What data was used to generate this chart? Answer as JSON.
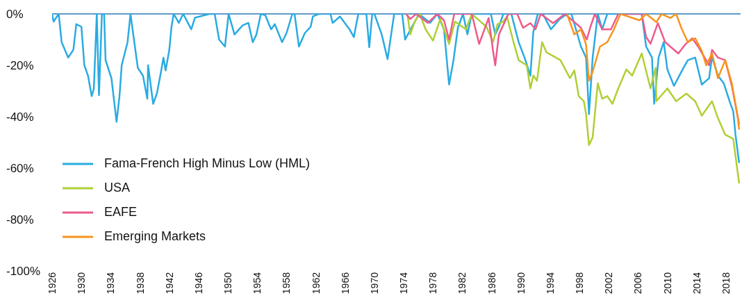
{
  "chart_data": {
    "type": "line",
    "xlim": [
      1926,
      2020
    ],
    "xticks": [
      1926,
      1930,
      1934,
      1938,
      1942,
      1946,
      1950,
      1954,
      1958,
      1962,
      1966,
      1970,
      1974,
      1978,
      1982,
      1986,
      1990,
      1994,
      1998,
      2002,
      2006,
      2010,
      2014,
      2018
    ],
    "ylim": [
      -100,
      0
    ],
    "yticks": [
      {
        "value": 0,
        "label": "0%"
      },
      {
        "value": -20,
        "label": "-20%"
      },
      {
        "value": -40,
        "label": "-40%"
      },
      {
        "value": -60,
        "label": "-60%"
      },
      {
        "value": -80,
        "label": "-80%"
      },
      {
        "value": -100,
        "label": "-100%"
      }
    ],
    "grid": false,
    "legend": "bottom left",
    "marker": "none",
    "line_style": "solid",
    "ref_lines": [
      {
        "axis": "y",
        "value": 0,
        "color": "#2a7ab8"
      }
    ],
    "series": [
      {
        "name": "Fama-French High Minus Low (HML)",
        "color": "#29abe2",
        "x": [
          1926,
          1926.2,
          1926.9,
          1927.3,
          1928.2,
          1928.9,
          1929.3,
          1930,
          1930.4,
          1930.9,
          1931.4,
          1931.7,
          1932.1,
          1932.4,
          1932.8,
          1933.1,
          1933.3,
          1934.1,
          1934.8,
          1935.2,
          1935.5,
          1936.3,
          1936.7,
          1937.7,
          1938.4,
          1939,
          1939.1,
          1939.8,
          1940.3,
          1940.9,
          1941.2,
          1941.5,
          1942,
          1942.3,
          1942.6,
          1943.3,
          1943.9,
          1945,
          1945.5,
          1947.5,
          1948.2,
          1948.8,
          1949.6,
          1950.1,
          1950.9,
          1952,
          1952.8,
          1953.4,
          1953.9,
          1954.5,
          1955.1,
          1955.9,
          1956.4,
          1957.4,
          1958,
          1958.8,
          1959.1,
          1959.7,
          1960.5,
          1961.3,
          1961.6,
          1962.4,
          1964,
          1964.3,
          1965.3,
          1966.6,
          1967.2,
          1967.8,
          1968.9,
          1969.3,
          1969.7,
          1970,
          1971,
          1971.8,
          1972.7,
          1973.8,
          1974.2,
          1974.8,
          1976.1,
          1977.6,
          1978.6,
          1979.5,
          1980.2,
          1980.8,
          1981.4,
          1982.1,
          1982.7,
          1983.3,
          1984.6,
          1985.9,
          1986.5,
          1987,
          1987.6,
          1988.7,
          1989.7,
          1990.5,
          1991.3,
          1991.7,
          1992.3,
          1993,
          1994.1,
          1995.3,
          1996.3,
          1996.9,
          1998.2,
          1998.9,
          1999.3,
          1999.8,
          2000.5,
          2001.1,
          2001.8,
          2002.7,
          2004,
          2006.5,
          2007.1,
          2007.9,
          2008.2,
          2008.8,
          2009.5,
          2010,
          2010.9,
          2012.2,
          2012.8,
          2013.8,
          2014.7,
          2015.7,
          2016.1,
          2016.9,
          2017.7,
          2018.5,
          2019,
          2019.3,
          2019.8
        ],
        "values": [
          0,
          -3,
          0,
          -11,
          -17,
          -14,
          -4,
          -5,
          -20,
          -24,
          -32,
          -29,
          0,
          -31.6,
          0,
          0,
          -18,
          -25,
          -42,
          -32,
          -20,
          -11,
          0,
          -21,
          -24,
          -33,
          -20,
          -35,
          -31,
          -22,
          -17,
          -22,
          -14,
          -5,
          0,
          -3.5,
          0,
          -6,
          -1.5,
          0,
          0,
          -10,
          -12.7,
          0,
          -8,
          -4.5,
          -3.5,
          -11,
          -8,
          0,
          -0.5,
          -6,
          -4,
          -11,
          -7.5,
          0,
          0,
          -12.7,
          -7.5,
          -5,
          -1,
          0,
          0,
          -3.5,
          -1,
          -6,
          -9,
          0,
          0,
          -13,
          0,
          0,
          -8,
          -17.6,
          0,
          0,
          -10,
          -6.8,
          0,
          -3.5,
          0,
          -6,
          -27.5,
          -18,
          -5.4,
          0,
          -8,
          0,
          0,
          0,
          -8,
          -5,
          0,
          0,
          -11,
          -17,
          -24,
          -7,
          0,
          0,
          -6,
          -2,
          0,
          0,
          -12.7,
          -17,
          -39,
          -17,
          0,
          -6,
          0,
          0,
          0,
          0,
          -12.7,
          -17,
          -35,
          -17,
          -11,
          -21.6,
          -28,
          -21,
          -18,
          -17,
          -27.5,
          -25,
          -16.7,
          -24,
          -27,
          -34,
          -38,
          -47,
          -58
        ]
      },
      {
        "name": "USA",
        "color": "#b0cf34",
        "x": [
          1974.5,
          1974.9,
          1975.5,
          1976.2,
          1977,
          1978,
          1979,
          1980.2,
          1981,
          1982.5,
          1983.3,
          1984.5,
          1985.3,
          1986.2,
          1986.8,
          1987.6,
          1988.1,
          1989,
          1989.7,
          1990.8,
          1991.3,
          1991.7,
          1992.2,
          1992.9,
          1993.5,
          1994.4,
          1995.4,
          1996.7,
          1997.3,
          1997.9,
          1998.6,
          1998.9,
          1999.3,
          1999.8,
          2000.5,
          2001.1,
          2001.8,
          2002.5,
          2003.3,
          2004.4,
          2005.2,
          2006.5,
          2007.7,
          2008.4,
          2008.5,
          2010,
          2011.2,
          2012.6,
          2013.8,
          2014.7,
          2016.1,
          2016.9,
          2017.9,
          2019,
          2019.8
        ],
        "values": [
          0,
          -8,
          -3,
          0,
          -6,
          -10.4,
          -2,
          -11.7,
          -3,
          -6,
          0,
          -3,
          -5,
          -11,
          -4,
          -3,
          -1,
          -11,
          -18,
          -20,
          -29,
          -24,
          -26,
          -11,
          -15,
          -16.4,
          -18,
          -25,
          -22,
          -32,
          -34,
          -39,
          -51,
          -48,
          -27,
          -33,
          -32,
          -35,
          -29,
          -21.6,
          -24,
          -15.4,
          -29,
          -21,
          -34,
          -29,
          -34,
          -31,
          -34,
          -39.6,
          -34,
          -40.5,
          -47,
          -48.6,
          -66
        ]
      },
      {
        "name": "EAFE",
        "color": "#ee5a8a",
        "x": [
          1974.3,
          1974.9,
          1975.7,
          1977.3,
          1978.6,
          1979.5,
          1980.2,
          1980.9,
          1982.5,
          1983.3,
          1984.3,
          1985.6,
          1986.2,
          1986.5,
          1987,
          1988.3,
          1989.5,
          1990.3,
          1991.3,
          1992,
          1992.7,
          1994.4,
          1996,
          1998.2,
          1999,
          1999.5,
          2000.1,
          2001.1,
          2002.3,
          2003.3,
          2006.5,
          2007.1,
          2007.7,
          2008.7,
          2009.7,
          2011.5,
          2012.4,
          2013.4,
          2014.2,
          2015.7,
          2016.1,
          2016.9,
          2017.9,
          2018.8,
          2019.8
        ],
        "values": [
          0,
          -2,
          0,
          -3.5,
          0,
          -2.5,
          -10,
          0,
          0,
          0,
          -11.7,
          -1.6,
          -14.4,
          -20,
          -8,
          0,
          0,
          -5.4,
          -3.6,
          -6,
          0,
          -3.6,
          0,
          -5.4,
          -10,
          -5,
          0,
          -6,
          -6,
          0,
          0,
          -9,
          -11.6,
          -3.6,
          -11,
          -15.4,
          -12,
          -9.5,
          -12.7,
          -20,
          -14,
          -17,
          -18,
          -28,
          -43
        ]
      },
      {
        "name": "Emerging Markets",
        "color": "#f7941d",
        "x": [
          1996.3,
          1997.3,
          1998.2,
          1998.9,
          1999.3,
          1999.8,
          2000.8,
          2001.8,
          2002.7,
          2003.6,
          2006.2,
          2007.1,
          2008.5,
          2009.2,
          2010.4,
          2011.2,
          2011.9,
          2012.8,
          2013.8,
          2014.7,
          2015.3,
          2016.1,
          2016.9,
          2017.9,
          2018.8,
          2019.6,
          2019.8
        ],
        "values": [
          0,
          -8,
          -6,
          -12,
          -26,
          -22.5,
          -12.7,
          -11,
          -6,
          0,
          -2.5,
          0,
          -3.2,
          0,
          -1.6,
          0,
          -5.4,
          -11,
          -9.5,
          -14.4,
          -20,
          -15.4,
          -25,
          -18,
          -27,
          -40,
          -45
        ]
      }
    ]
  }
}
